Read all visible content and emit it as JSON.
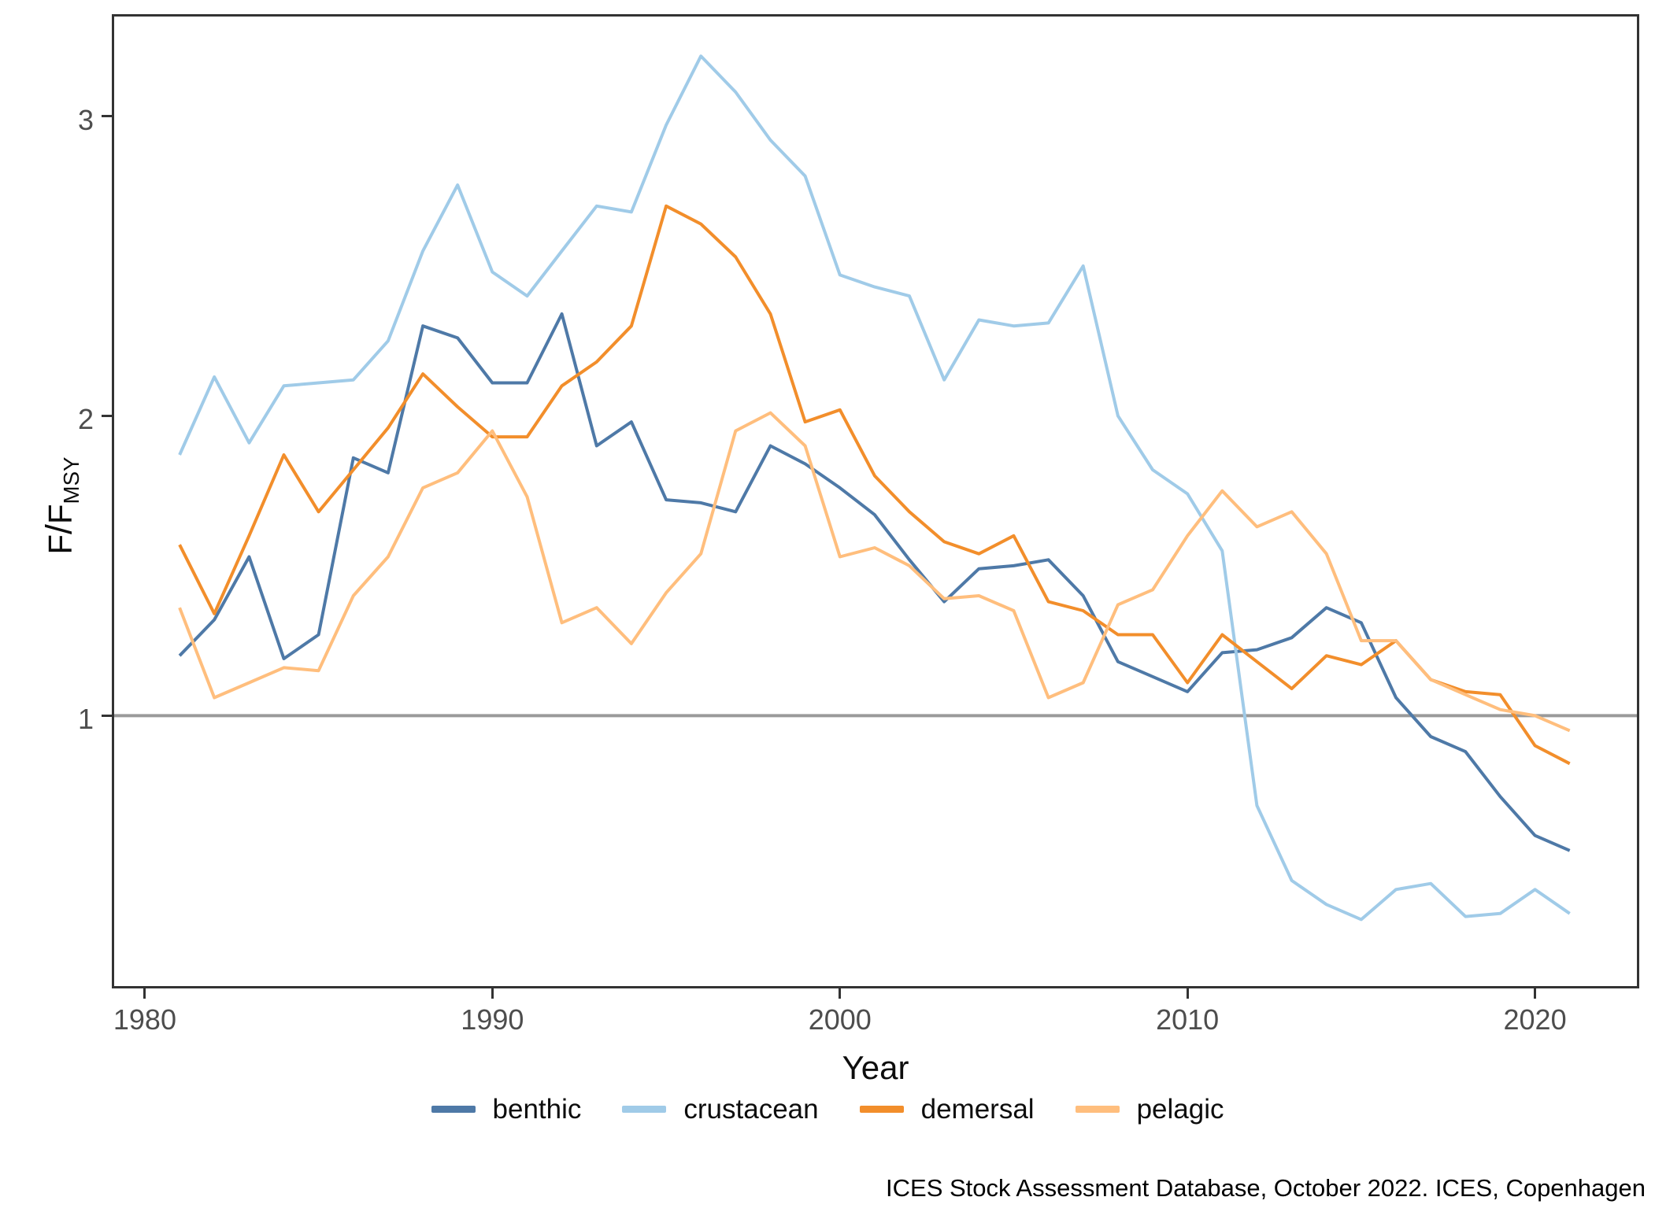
{
  "chart": {
    "y_axis": {
      "title_main": "F",
      "title_slash": "/",
      "title_base": "F",
      "title_sub": "MSY",
      "ticks": [
        1,
        2,
        3
      ]
    },
    "x_axis": {
      "title": "Year",
      "ticks": [
        1980,
        1990,
        2000,
        2010,
        2020
      ]
    },
    "caption": "ICES Stock Assessment Database, October 2022. ICES, Copenhagen"
  },
  "chart_data": {
    "type": "line",
    "title": "",
    "xlabel": "Year",
    "ylabel": "F/F_MSY",
    "grid": false,
    "legend_position": "bottom",
    "reference_line_y": 1,
    "x_domain": [
      1979.05,
      2023.0
    ],
    "y_domain": [
      0.09,
      3.34
    ],
    "x": [
      1981,
      1982,
      1983,
      1984,
      1985,
      1986,
      1987,
      1988,
      1989,
      1990,
      1991,
      1992,
      1993,
      1994,
      1995,
      1996,
      1997,
      1998,
      1999,
      2000,
      2001,
      2002,
      2003,
      2004,
      2005,
      2006,
      2007,
      2008,
      2009,
      2010,
      2011,
      2012,
      2013,
      2014,
      2015,
      2016,
      2017,
      2018,
      2019,
      2020,
      2021
    ],
    "series": [
      {
        "name": "benthic",
        "color": "#4e79a7",
        "values": [
          1.2,
          1.32,
          1.53,
          1.19,
          1.27,
          1.86,
          1.81,
          2.3,
          2.26,
          2.11,
          2.11,
          2.34,
          1.9,
          1.98,
          1.72,
          1.71,
          1.68,
          1.9,
          1.84,
          1.76,
          1.67,
          1.52,
          1.38,
          1.49,
          1.5,
          1.52,
          1.4,
          1.18,
          1.13,
          1.08,
          1.21,
          1.22,
          1.26,
          1.36,
          1.31,
          1.06,
          0.93,
          0.88,
          0.73,
          0.6,
          0.55
        ]
      },
      {
        "name": "crustacean",
        "color": "#a0cbe8",
        "values": [
          1.87,
          2.13,
          1.91,
          2.1,
          2.11,
          2.12,
          2.25,
          2.55,
          2.77,
          2.48,
          2.4,
          2.55,
          2.7,
          2.68,
          2.97,
          3.2,
          3.08,
          2.92,
          2.8,
          2.47,
          2.43,
          2.4,
          2.12,
          2.32,
          2.3,
          2.31,
          2.5,
          2.0,
          1.82,
          1.74,
          1.55,
          0.7,
          0.45,
          0.37,
          0.32,
          0.42,
          0.44,
          0.33,
          0.34,
          0.42,
          0.34
        ]
      },
      {
        "name": "demersal",
        "color": "#f28e2b",
        "values": [
          1.57,
          1.34,
          1.6,
          1.87,
          1.68,
          1.82,
          1.96,
          2.14,
          2.03,
          1.93,
          1.93,
          2.1,
          2.18,
          2.3,
          2.7,
          2.64,
          2.53,
          2.34,
          1.98,
          2.02,
          1.8,
          1.68,
          1.58,
          1.54,
          1.6,
          1.38,
          1.35,
          1.27,
          1.27,
          1.11,
          1.27,
          1.18,
          1.09,
          1.2,
          1.17,
          1.25,
          1.12,
          1.08,
          1.07,
          0.9,
          0.84
        ]
      },
      {
        "name": "pelagic",
        "color": "#ffbe7d",
        "values": [
          1.36,
          1.06,
          1.11,
          1.16,
          1.15,
          1.4,
          1.53,
          1.76,
          1.81,
          1.95,
          1.73,
          1.31,
          1.36,
          1.24,
          1.41,
          1.54,
          1.95,
          2.01,
          1.9,
          1.53,
          1.56,
          1.5,
          1.39,
          1.4,
          1.35,
          1.06,
          1.11,
          1.37,
          1.42,
          1.6,
          1.75,
          1.63,
          1.68,
          1.54,
          1.25,
          1.25,
          1.12,
          1.07,
          1.02,
          1.0,
          0.95
        ]
      }
    ]
  },
  "style": {
    "axis_color": "#333333",
    "tick_label_color": "#4d4d4d",
    "reference_line_color": "#9a9a9a",
    "panel_border_color": "#333333",
    "line_width": 4
  }
}
